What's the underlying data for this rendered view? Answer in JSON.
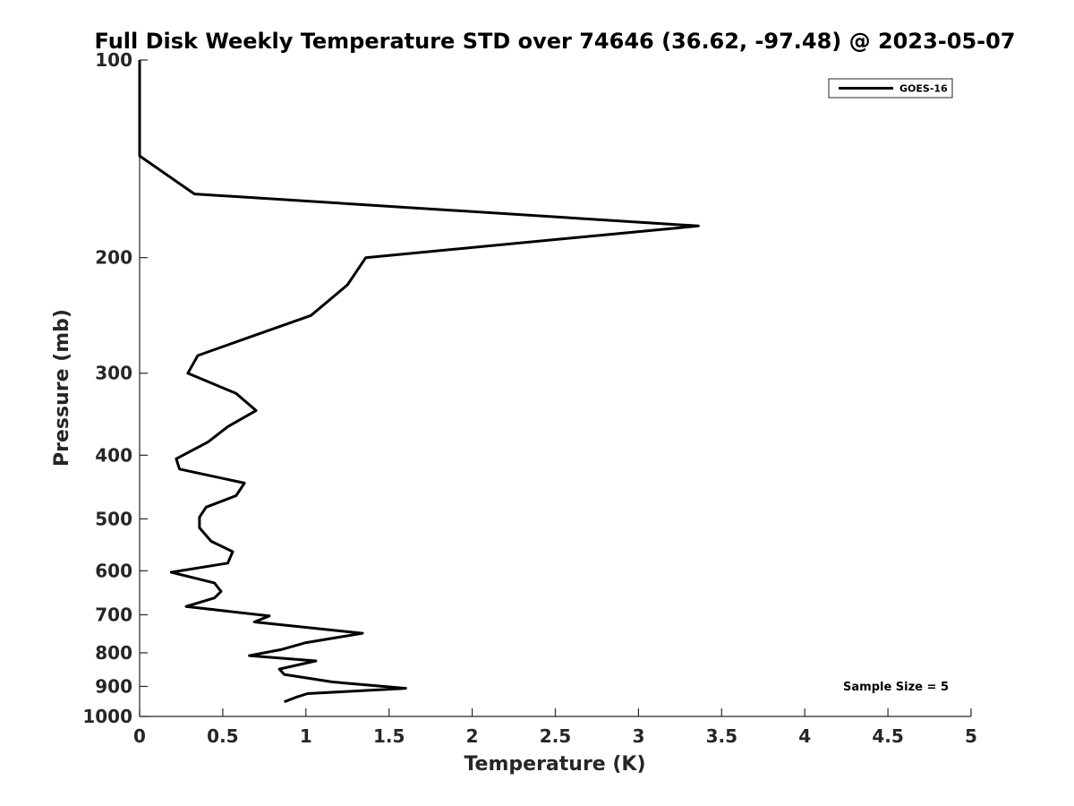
{
  "chart_data": {
    "type": "line",
    "title": "Full Disk Weekly Temperature STD over 74646 (36.62, -97.48) @ 2023-05-07",
    "xlabel": "Temperature (K)",
    "ylabel": "Pressure (mb)",
    "xlim": [
      0,
      5
    ],
    "ylim": [
      1000,
      100
    ],
    "yscale": "log",
    "grid": false,
    "legend_position": "top-right",
    "x_ticks": [
      0,
      0.5,
      1,
      1.5,
      2,
      2.5,
      3,
      3.5,
      4,
      4.5,
      5
    ],
    "x_tick_labels": [
      "0",
      "0.5",
      "1",
      "1.5",
      "2",
      "2.5",
      "3",
      "3.5",
      "4",
      "4.5",
      "5"
    ],
    "y_ticks": [
      100,
      200,
      300,
      400,
      500,
      600,
      700,
      800,
      900,
      1000
    ],
    "y_tick_labels": [
      "100",
      "200",
      "300",
      "400",
      "500",
      "600",
      "700",
      "800",
      "900",
      "1000"
    ],
    "series": [
      {
        "name": "GOES-16",
        "color": "#000000",
        "points": [
          [
            0.0,
            100
          ],
          [
            0.0,
            140
          ],
          [
            0.33,
            160
          ],
          [
            3.36,
            179
          ],
          [
            1.36,
            200
          ],
          [
            1.25,
            220
          ],
          [
            1.03,
            245
          ],
          [
            0.65,
            265
          ],
          [
            0.35,
            282
          ],
          [
            0.29,
            300
          ],
          [
            0.58,
            322
          ],
          [
            0.7,
            342
          ],
          [
            0.53,
            362
          ],
          [
            0.41,
            382
          ],
          [
            0.22,
            405
          ],
          [
            0.24,
            420
          ],
          [
            0.63,
            441
          ],
          [
            0.58,
            461
          ],
          [
            0.4,
            480
          ],
          [
            0.36,
            497
          ],
          [
            0.36,
            516
          ],
          [
            0.43,
            541
          ],
          [
            0.56,
            561
          ],
          [
            0.53,
            584
          ],
          [
            0.19,
            603
          ],
          [
            0.45,
            626
          ],
          [
            0.49,
            645
          ],
          [
            0.45,
            660
          ],
          [
            0.28,
            680
          ],
          [
            0.78,
            703
          ],
          [
            0.69,
            718
          ],
          [
            1.34,
            747
          ],
          [
            1.0,
            772
          ],
          [
            0.85,
            791
          ],
          [
            0.66,
            808
          ],
          [
            1.06,
            823
          ],
          [
            0.84,
            847
          ],
          [
            0.87,
            863
          ],
          [
            1.16,
            886
          ],
          [
            1.6,
            906
          ],
          [
            1.01,
            923
          ],
          [
            0.94,
            935
          ],
          [
            0.87,
            950
          ]
        ]
      }
    ],
    "annotation": "Sample Size = 5"
  }
}
